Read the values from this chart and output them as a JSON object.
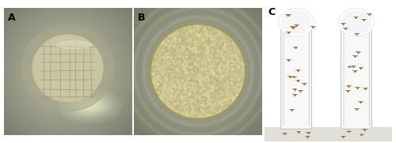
{
  "figure_width": 5.0,
  "figure_height": 1.81,
  "dpi": 100,
  "background_color": "#ffffff",
  "panel_A": {
    "label": "A",
    "bg_color": "#7a7e6a",
    "ring1_color": "#9a9e8a",
    "ring2_color": "#b8b89a",
    "food_color": "#c8c8a0",
    "abrasion_color": "#a0a080",
    "highlight_color": "#e8e8c8",
    "dark_corner": "#5a5e4a"
  },
  "panel_B": {
    "label": "B",
    "bg_color": "#7a7e6a",
    "ring_color": "#9a9e8a",
    "yeast_outer": "#c8c090",
    "yeast_inner": "#d0c898",
    "yeast_texture_dark": "#b0a870",
    "yeast_texture_light": "#ddd0a0"
  },
  "panel_C": {
    "label": "C",
    "bg_color": "#f0f0ee",
    "vial_body": "#f8f8f8",
    "vial_edge": "#cccccc",
    "cotton_color": "#ffffff",
    "cotton_edge": "#e0e0e0",
    "fly_color": "#9a7040",
    "floor_color": "#e8e8e0"
  },
  "label_fontsize": 9,
  "label_color": "#000000",
  "label_weight": "bold"
}
